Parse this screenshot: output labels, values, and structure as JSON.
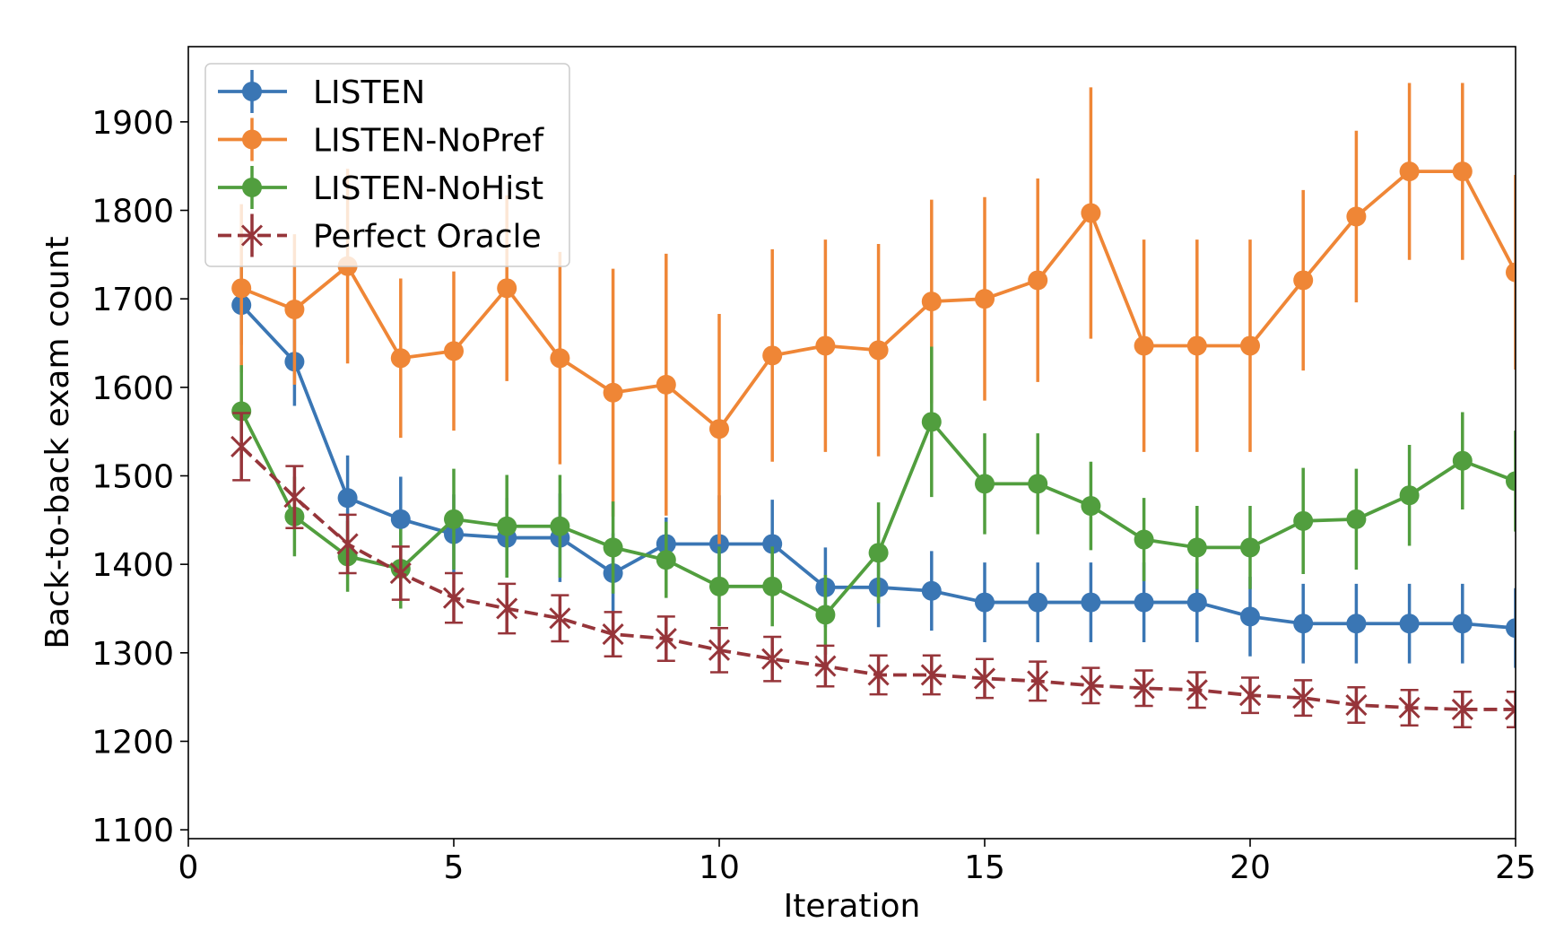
{
  "chart_data": {
    "type": "line",
    "title": "",
    "xlabel": "Iteration",
    "ylabel": "Back-to-back exam count",
    "xlim": [
      0,
      25
    ],
    "ylim": [
      1090,
      1985
    ],
    "xticks": [
      0,
      5,
      10,
      15,
      20,
      25
    ],
    "yticks": [
      1100,
      1200,
      1300,
      1400,
      1500,
      1600,
      1700,
      1800,
      1900
    ],
    "grid": false,
    "legend_position": "top-left",
    "x": [
      1,
      2,
      3,
      4,
      5,
      6,
      7,
      8,
      9,
      10,
      11,
      12,
      13,
      14,
      15,
      16,
      17,
      18,
      19,
      20,
      21,
      22,
      23,
      24,
      25
    ],
    "series": [
      {
        "name": "LISTEN",
        "color": "#3a76b4",
        "marker": "circle",
        "linestyle": "solid",
        "values": [
          1693,
          1629,
          1475,
          1451,
          1434,
          1430,
          1430,
          1390,
          1423,
          1423,
          1423,
          1374,
          1374,
          1370,
          1357,
          1357,
          1357,
          1357,
          1357,
          1341,
          1333,
          1333,
          1333,
          1333,
          1328
        ],
        "errors": [
          45,
          50,
          48,
          48,
          45,
          45,
          50,
          45,
          30,
          55,
          50,
          45,
          45,
          45,
          45,
          45,
          45,
          45,
          45,
          45,
          45,
          45,
          45,
          45,
          45
        ]
      },
      {
        "name": "LISTEN-NoPref",
        "color": "#ef8636",
        "marker": "circle",
        "linestyle": "solid",
        "values": [
          1712,
          1688,
          1737,
          1633,
          1641,
          1712,
          1633,
          1594,
          1603,
          1553,
          1636,
          1647,
          1642,
          1697,
          1700,
          1721,
          1797,
          1647,
          1647,
          1647,
          1721,
          1793,
          1844,
          1844,
          1730
        ],
        "errors": [
          95,
          85,
          110,
          90,
          90,
          105,
          120,
          140,
          148,
          130,
          120,
          120,
          120,
          115,
          115,
          115,
          142,
          120,
          120,
          120,
          102,
          97,
          100,
          100,
          110
        ]
      },
      {
        "name": "LISTEN-NoHist",
        "color": "#519e3e",
        "marker": "circle",
        "linestyle": "solid",
        "values": [
          1573,
          1454,
          1409,
          1395,
          1451,
          1443,
          1443,
          1419,
          1405,
          1375,
          1375,
          1343,
          1413,
          1561,
          1491,
          1491,
          1466,
          1428,
          1419,
          1419,
          1449,
          1451,
          1478,
          1517,
          1494
        ],
        "errors": [
          52,
          45,
          40,
          45,
          57,
          58,
          58,
          52,
          43,
          45,
          45,
          45,
          57,
          85,
          57,
          57,
          50,
          47,
          47,
          47,
          60,
          57,
          57,
          55,
          57
        ]
      },
      {
        "name": "Perfect Oracle",
        "color": "#96353a",
        "marker": "x",
        "linestyle": "dashed",
        "values": [
          1533,
          1476,
          1423,
          1390,
          1362,
          1350,
          1339,
          1321,
          1316,
          1303,
          1293,
          1285,
          1275,
          1275,
          1271,
          1268,
          1263,
          1260,
          1258,
          1252,
          1249,
          1241,
          1238,
          1236,
          1236
        ],
        "errors": [
          38,
          35,
          33,
          30,
          28,
          28,
          26,
          25,
          25,
          25,
          25,
          23,
          22,
          22,
          22,
          22,
          20,
          20,
          20,
          20,
          20,
          20,
          20,
          20,
          20
        ]
      }
    ]
  }
}
